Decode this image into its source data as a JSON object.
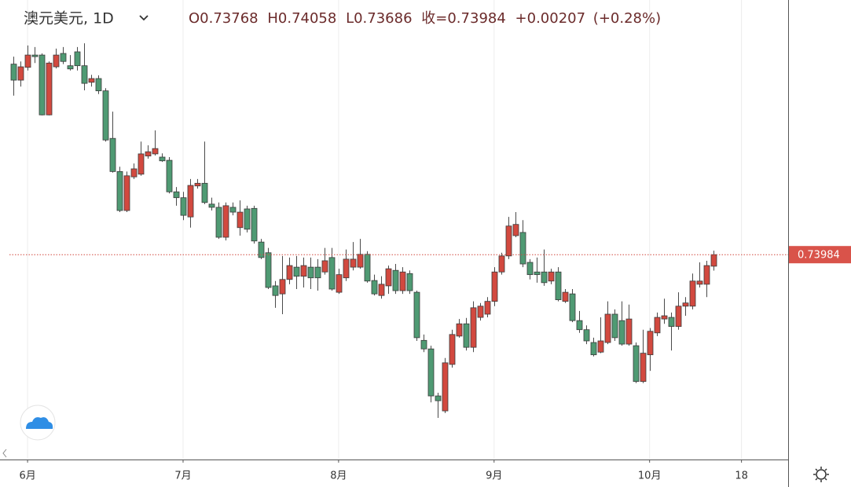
{
  "chart_data": {
    "type": "candlestick",
    "title": "澳元美元, 1D",
    "legend_labels": {
      "open": "O",
      "high": "H",
      "low": "L",
      "close": "收="
    },
    "change_label": "+0.00207",
    "change_pct_label": "(+0.28%)",
    "up_color": "#d2493f",
    "down_color": "#4f9a73",
    "grid": true,
    "xlim": [
      -1.9,
      109.6
    ],
    "ylim": [
      0.7015,
      0.7875
    ],
    "xticks": [
      {
        "value": 2,
        "label": "6月"
      },
      {
        "value": 24,
        "label": "7月"
      },
      {
        "value": 46,
        "label": "8月"
      },
      {
        "value": 68,
        "label": "9月"
      },
      {
        "value": 90,
        "label": "10月"
      },
      {
        "value": 103,
        "label": "18"
      }
    ],
    "open": [
      0.7755,
      0.7725,
      0.7749,
      0.7772,
      0.7772,
      0.766,
      0.775,
      0.7775,
      0.7752,
      0.7778,
      0.7752,
      0.7721,
      0.7728,
      0.7705,
      0.7616,
      0.7554,
      0.7481,
      0.7544,
      0.7549,
      0.7583,
      0.7587,
      0.7581,
      0.7575,
      0.7516,
      0.7505,
      0.7469,
      0.7527,
      0.7532,
      0.7493,
      0.7487,
      0.7431,
      0.7487,
      0.7449,
      0.7484,
      0.7485,
      0.7422,
      0.7402,
      0.734,
      0.7325,
      0.7352,
      0.7375,
      0.7358,
      0.7375,
      0.7375,
      0.7366,
      0.7393,
      0.7328,
      0.7355,
      0.7375,
      0.7375,
      0.7399,
      0.735,
      0.7322,
      0.734,
      0.7369,
      0.7331,
      0.7363,
      0.7328,
      0.7238,
      0.7222,
      0.7134,
      0.7106,
      0.7193,
      0.7246,
      0.7269,
      0.7225,
      0.7281,
      0.7287,
      0.7311,
      0.7366,
      0.7396,
      0.7434,
      0.744,
      0.7384,
      0.7366,
      0.7366,
      0.7349,
      0.7366,
      0.7311,
      0.7325,
      0.7275,
      0.7258,
      0.7234,
      0.7216,
      0.7234,
      0.7287,
      0.7275,
      0.7231,
      0.7228,
      0.7161,
      0.7211,
      0.7252,
      0.7278,
      0.7281,
      0.7264,
      0.7302,
      0.7302,
      0.7343,
      0.7343,
      0.73768
    ],
    "high": [
      0.7769,
      0.776,
      0.779,
      0.7787,
      0.7775,
      0.776,
      0.7784,
      0.7787,
      0.7772,
      0.7787,
      0.7794,
      0.7735,
      0.7734,
      0.771,
      0.7666,
      0.7563,
      0.7554,
      0.7569,
      0.761,
      0.7603,
      0.7631,
      0.7588,
      0.7581,
      0.7525,
      0.7516,
      0.754,
      0.754,
      0.761,
      0.7505,
      0.7496,
      0.7496,
      0.7496,
      0.75,
      0.749,
      0.749,
      0.7428,
      0.7411,
      0.7349,
      0.7396,
      0.7393,
      0.7396,
      0.7393,
      0.7393,
      0.739,
      0.7411,
      0.7411,
      0.7372,
      0.7408,
      0.7422,
      0.7428,
      0.7405,
      0.7361,
      0.7358,
      0.7378,
      0.7381,
      0.7375,
      0.7369,
      0.7331,
      0.7249,
      0.7228,
      0.714,
      0.7205,
      0.7258,
      0.7278,
      0.728,
      0.7311,
      0.7308,
      0.7319,
      0.7375,
      0.7402,
      0.7469,
      0.7478,
      0.7463,
      0.739,
      0.7393,
      0.7408,
      0.7372,
      0.7375,
      0.7334,
      0.7334,
      0.7293,
      0.7266,
      0.7243,
      0.7281,
      0.7311,
      0.7296,
      0.7311,
      0.7305,
      0.7234,
      0.7258,
      0.7261,
      0.729,
      0.7316,
      0.729,
      0.7328,
      0.7319,
      0.7363,
      0.7384,
      0.7387,
      0.74058
    ],
    "low": [
      0.7696,
      0.7713,
      0.7743,
      0.7757,
      0.7659,
      0.7659,
      0.7747,
      0.7755,
      0.7743,
      0.7743,
      0.7706,
      0.7713,
      0.7699,
      0.761,
      0.7552,
      0.7478,
      0.7478,
      0.754,
      0.7546,
      0.7578,
      0.7584,
      0.7572,
      0.7513,
      0.749,
      0.7463,
      0.7449,
      0.7522,
      0.7493,
      0.7481,
      0.7428,
      0.7425,
      0.7472,
      0.7434,
      0.744,
      0.7419,
      0.739,
      0.7334,
      0.7299,
      0.7287,
      0.7343,
      0.7334,
      0.7337,
      0.7334,
      0.7331,
      0.7361,
      0.7331,
      0.7325,
      0.7349,
      0.7369,
      0.7372,
      0.7346,
      0.7322,
      0.7316,
      0.7325,
      0.7325,
      0.7325,
      0.7325,
      0.7237,
      0.7216,
      0.7122,
      0.7093,
      0.7102,
      0.7187,
      0.7243,
      0.7219,
      0.7216,
      0.7275,
      0.7281,
      0.7302,
      0.7361,
      0.739,
      0.7431,
      0.7375,
      0.7352,
      0.7346,
      0.734,
      0.7343,
      0.7311,
      0.7308,
      0.7272,
      0.7252,
      0.7231,
      0.7208,
      0.7214,
      0.7231,
      0.7237,
      0.7228,
      0.7228,
      0.7158,
      0.7158,
      0.7181,
      0.7246,
      0.7269,
      0.7219,
      0.7258,
      0.7284,
      0.7296,
      0.7337,
      0.7319,
      0.73686
    ],
    "close": [
      0.7725,
      0.775,
      0.7772,
      0.7769,
      0.766,
      0.7757,
      0.7772,
      0.776,
      0.7746,
      0.7752,
      0.7719,
      0.7728,
      0.7705,
      0.7613,
      0.7554,
      0.7481,
      0.7546,
      0.7559,
      0.7587,
      0.7591,
      0.7597,
      0.7574,
      0.7516,
      0.7505,
      0.7472,
      0.7528,
      0.7532,
      0.7496,
      0.7487,
      0.7431,
      0.749,
      0.7478,
      0.7478,
      0.7446,
      0.7424,
      0.7393,
      0.7337,
      0.7322,
      0.7352,
      0.7378,
      0.7358,
      0.7378,
      0.7355,
      0.7355,
      0.7387,
      0.7334,
      0.7361,
      0.739,
      0.739,
      0.7399,
      0.7349,
      0.7325,
      0.7343,
      0.7372,
      0.7331,
      0.7366,
      0.7331,
      0.7243,
      0.7222,
      0.7134,
      0.7125,
      0.7196,
      0.7249,
      0.7269,
      0.7225,
      0.7299,
      0.7302,
      0.7311,
      0.7366,
      0.7396,
      0.7452,
      0.7455,
      0.7381,
      0.7361,
      0.7361,
      0.7346,
      0.7366,
      0.7314,
      0.7328,
      0.7275,
      0.7258,
      0.7237,
      0.7211,
      0.7237,
      0.7287,
      0.7243,
      0.7231,
      0.7278,
      0.7161,
      0.7214,
      0.7255,
      0.7281,
      0.7284,
      0.7264,
      0.7302,
      0.7308,
      0.7349,
      0.7349,
      0.7378,
      0.73984
    ]
  }
}
